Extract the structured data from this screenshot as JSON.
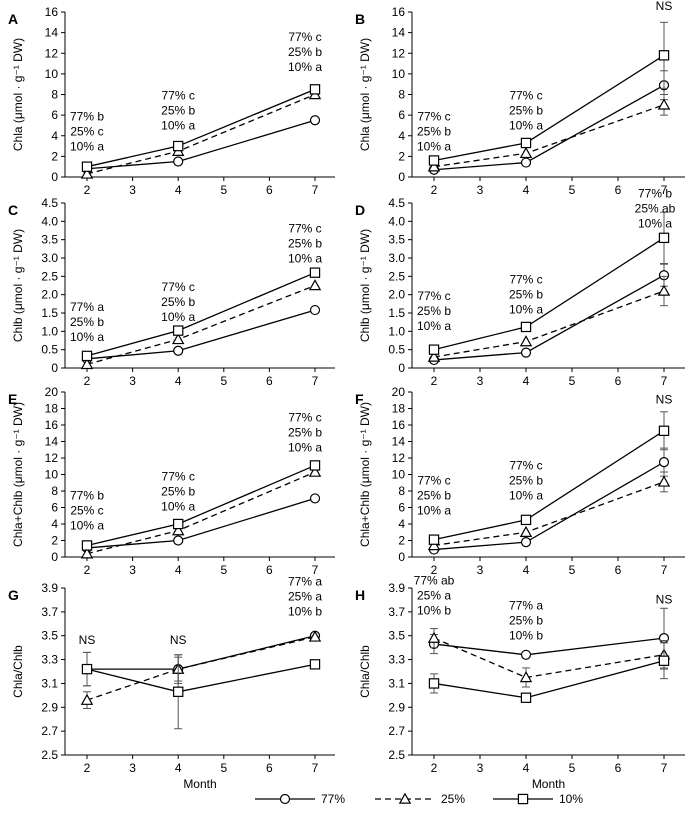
{
  "legend": [
    {
      "label": "77%",
      "marker": "circle",
      "dash": "solid"
    },
    {
      "label": "25%",
      "marker": "triangle",
      "dash": "dashed"
    },
    {
      "label": "10%",
      "marker": "square",
      "dash": "solid"
    }
  ],
  "chart_data": [
    {
      "type": "line",
      "panel": "A",
      "ylabel": "Chla (μmol · g⁻¹ DW)",
      "xlabel": "",
      "x": [
        2,
        4,
        7
      ],
      "xlim": [
        2,
        7
      ],
      "xticks": [
        2,
        3,
        4,
        5,
        6,
        7
      ],
      "ylim": [
        0,
        16
      ],
      "yticks": [
        "0",
        "2",
        "4",
        "6",
        "8",
        "10",
        "12",
        "14",
        "16"
      ],
      "series": [
        {
          "name": "77%",
          "values": [
            0.8,
            1.5,
            5.5
          ],
          "errors": [
            0,
            0,
            0
          ]
        },
        {
          "name": "25%",
          "values": [
            0.3,
            2.5,
            8.0
          ],
          "errors": [
            0,
            0,
            0
          ]
        },
        {
          "name": "10%",
          "values": [
            1.0,
            3.0,
            8.5
          ],
          "errors": [
            0,
            0,
            0
          ]
        }
      ],
      "annotations": [
        {
          "x": 2,
          "y": 5.5,
          "lines": [
            "77% b",
            "25% c",
            "10% a"
          ]
        },
        {
          "x": 4,
          "y": 7.5,
          "lines": [
            "77% c",
            "25% b",
            "10% a"
          ]
        },
        {
          "x": 7,
          "y": 13.2,
          "lines": [
            "77% c",
            "25% b",
            "10% a"
          ]
        }
      ]
    },
    {
      "type": "line",
      "panel": "B",
      "ylabel": "Chla (μmol · g⁻¹ DW)",
      "xlabel": "",
      "x": [
        2,
        4,
        7
      ],
      "xlim": [
        2,
        7
      ],
      "xticks": [
        2,
        3,
        4,
        5,
        6,
        7
      ],
      "ylim": [
        0,
        16
      ],
      "yticks": [
        "0",
        "2",
        "4",
        "6",
        "8",
        "10",
        "12",
        "14",
        "16"
      ],
      "series": [
        {
          "name": "77%",
          "values": [
            0.7,
            1.4,
            8.9
          ],
          "errors": [
            0,
            0,
            1.4
          ]
        },
        {
          "name": "25%",
          "values": [
            1.0,
            2.3,
            7.0
          ],
          "errors": [
            0,
            0,
            1.0
          ]
        },
        {
          "name": "10%",
          "values": [
            1.6,
            3.3,
            11.8
          ],
          "errors": [
            0,
            0,
            3.2
          ]
        }
      ],
      "annotations": [
        {
          "x": 2,
          "y": 5.5,
          "lines": [
            "77% c",
            "25% b",
            "10% a"
          ]
        },
        {
          "x": 4,
          "y": 7.5,
          "lines": [
            "77% c",
            "25% b",
            "10% a"
          ]
        },
        {
          "x": 7,
          "y": 16.2,
          "lines": [
            "NS"
          ]
        }
      ]
    },
    {
      "type": "line",
      "panel": "C",
      "ylabel": "Chlb (μmol · g⁻¹ DW)",
      "xlabel": "",
      "x": [
        2,
        4,
        7
      ],
      "xlim": [
        2,
        7
      ],
      "xticks": [
        2,
        3,
        4,
        5,
        6,
        7
      ],
      "ylim": [
        0,
        4.5
      ],
      "yticks": [
        "0",
        "0.5",
        "1.0",
        "1.5",
        "2.0",
        "2.5",
        "3.0",
        "3.5",
        "4.0",
        "4.5"
      ],
      "series": [
        {
          "name": "77%",
          "values": [
            0.25,
            0.47,
            1.58
          ],
          "errors": [
            0,
            0,
            0
          ]
        },
        {
          "name": "25%",
          "values": [
            0.1,
            0.78,
            2.25
          ],
          "errors": [
            0,
            0,
            0
          ]
        },
        {
          "name": "10%",
          "values": [
            0.33,
            1.02,
            2.6
          ],
          "errors": [
            0,
            0,
            0
          ]
        }
      ],
      "annotations": [
        {
          "x": 2,
          "y": 1.55,
          "lines": [
            "77% a",
            "25% b",
            "10% a"
          ]
        },
        {
          "x": 4,
          "y": 2.1,
          "lines": [
            "77% c",
            "25% b",
            "10% a"
          ]
        },
        {
          "x": 7,
          "y": 3.7,
          "lines": [
            "77% c",
            "25% b",
            "10% a"
          ]
        }
      ]
    },
    {
      "type": "line",
      "panel": "D",
      "ylabel": "Chlb (μmol · g⁻¹ DW)",
      "xlabel": "",
      "x": [
        2,
        4,
        7
      ],
      "xlim": [
        2,
        7
      ],
      "xticks": [
        2,
        3,
        4,
        5,
        6,
        7
      ],
      "ylim": [
        0,
        4.5
      ],
      "yticks": [
        "0",
        "0.5",
        "1.0",
        "1.5",
        "2.0",
        "2.5",
        "3.0",
        "3.5",
        "4.0",
        "4.5"
      ],
      "series": [
        {
          "name": "77%",
          "values": [
            0.22,
            0.42,
            2.53
          ],
          "errors": [
            0,
            0,
            0.3
          ]
        },
        {
          "name": "25%",
          "values": [
            0.3,
            0.72,
            2.1
          ],
          "errors": [
            0,
            0,
            0.4
          ]
        },
        {
          "name": "10%",
          "values": [
            0.5,
            1.12,
            3.55
          ],
          "errors": [
            0,
            0,
            0.7
          ]
        }
      ],
      "annotations": [
        {
          "x": 2,
          "y": 1.85,
          "lines": [
            "77% c",
            "25% b",
            "10% a"
          ]
        },
        {
          "x": 4,
          "y": 2.3,
          "lines": [
            "77% c",
            "25% b",
            "10% a"
          ]
        },
        {
          "x": 7,
          "y": 4.65,
          "lines": [
            "77% b",
            "25% ab",
            "10% a"
          ]
        }
      ]
    },
    {
      "type": "line",
      "panel": "E",
      "ylabel": "Chla+Chlb (μmol · g⁻¹ DW)",
      "xlabel": "",
      "x": [
        2,
        4,
        7
      ],
      "xlim": [
        2,
        7
      ],
      "xticks": [
        2,
        3,
        4,
        5,
        6,
        7
      ],
      "ylim": [
        0,
        20
      ],
      "yticks": [
        "0",
        "2",
        "4",
        "6",
        "8",
        "10",
        "12",
        "14",
        "16",
        "18",
        "20"
      ],
      "series": [
        {
          "name": "77%",
          "values": [
            1.1,
            2.0,
            7.1
          ],
          "errors": [
            0,
            0,
            0
          ]
        },
        {
          "name": "25%",
          "values": [
            0.4,
            3.2,
            10.3
          ],
          "errors": [
            0,
            0,
            0
          ]
        },
        {
          "name": "10%",
          "values": [
            1.4,
            4.0,
            11.1
          ],
          "errors": [
            0,
            0,
            0
          ]
        }
      ],
      "annotations": [
        {
          "x": 2,
          "y": 7.0,
          "lines": [
            "77% b",
            "25% c",
            "10% a"
          ]
        },
        {
          "x": 4,
          "y": 9.3,
          "lines": [
            "77% c",
            "25% b",
            "10% a"
          ]
        },
        {
          "x": 7,
          "y": 16.4,
          "lines": [
            "77% c",
            "25% b",
            "10% a"
          ]
        }
      ]
    },
    {
      "type": "line",
      "panel": "F",
      "ylabel": "Chla+Chlb (μmol · g⁻¹ DW)",
      "xlabel": "",
      "x": [
        2,
        4,
        7
      ],
      "xlim": [
        2,
        7
      ],
      "xticks": [
        2,
        3,
        4,
        5,
        6,
        7
      ],
      "ylim": [
        0,
        20
      ],
      "yticks": [
        "0",
        "2",
        "4",
        "6",
        "8",
        "10",
        "12",
        "14",
        "16",
        "18",
        "20"
      ],
      "series": [
        {
          "name": "77%",
          "values": [
            0.9,
            1.8,
            11.5
          ],
          "errors": [
            0,
            0,
            1.7
          ]
        },
        {
          "name": "25%",
          "values": [
            1.4,
            3.0,
            9.1
          ],
          "errors": [
            0,
            0,
            1.2
          ]
        },
        {
          "name": "10%",
          "values": [
            2.1,
            4.5,
            15.3
          ],
          "errors": [
            0,
            0,
            2.3
          ]
        }
      ],
      "annotations": [
        {
          "x": 2,
          "y": 8.8,
          "lines": [
            "77% c",
            "25% b",
            "10% a"
          ]
        },
        {
          "x": 4,
          "y": 10.6,
          "lines": [
            "77% c",
            "25% b",
            "10% a"
          ]
        },
        {
          "x": 7,
          "y": 18.6,
          "lines": [
            "NS"
          ]
        }
      ]
    },
    {
      "type": "line",
      "panel": "G",
      "ylabel": "Chla/Chlb",
      "xlabel": "Month",
      "x": [
        2,
        4,
        7
      ],
      "xlim": [
        2,
        7
      ],
      "xticks": [
        2,
        3,
        4,
        5,
        6,
        7
      ],
      "ylim": [
        2.5,
        3.9
      ],
      "yticks": [
        "2.5",
        "2.7",
        "2.9",
        "3.1",
        "3.3",
        "3.5",
        "3.7",
        "3.9"
      ],
      "series": [
        {
          "name": "77%",
          "values": [
            3.22,
            3.22,
            3.5
          ],
          "errors": [
            0.14,
            0.12,
            0
          ]
        },
        {
          "name": "25%",
          "values": [
            2.96,
            3.22,
            3.49
          ],
          "errors": [
            0.07,
            0.1,
            0
          ]
        },
        {
          "name": "10%",
          "values": [
            3.22,
            3.03,
            3.26
          ],
          "errors": [
            0.14,
            0.31,
            0
          ]
        }
      ],
      "annotations": [
        {
          "x": 2,
          "y": 3.43,
          "lines": [
            "NS"
          ]
        },
        {
          "x": 4,
          "y": 3.43,
          "lines": [
            "NS"
          ]
        },
        {
          "x": 7,
          "y": 3.92,
          "lines": [
            "77% a",
            "25% a",
            "10% b"
          ]
        }
      ]
    },
    {
      "type": "line",
      "panel": "H",
      "ylabel": "Chla/Chlb",
      "xlabel": "Month",
      "x": [
        2,
        4,
        7
      ],
      "xlim": [
        2,
        7
      ],
      "xticks": [
        2,
        3,
        4,
        5,
        6,
        7
      ],
      "ylim": [
        2.5,
        3.9
      ],
      "yticks": [
        "2.5",
        "2.7",
        "2.9",
        "3.1",
        "3.3",
        "3.5",
        "3.7",
        "3.9"
      ],
      "series": [
        {
          "name": "77%",
          "values": [
            3.43,
            3.34,
            3.48
          ],
          "errors": [
            0.08,
            0,
            0.25
          ]
        },
        {
          "name": "25%",
          "values": [
            3.48,
            3.15,
            3.34
          ],
          "errors": [
            0.08,
            0.08,
            0.12
          ]
        },
        {
          "name": "10%",
          "values": [
            3.1,
            2.98,
            3.29
          ],
          "errors": [
            0.08,
            0,
            0.15
          ]
        }
      ],
      "annotations": [
        {
          "x": 2,
          "y": 3.93,
          "lines": [
            "77% ab",
            "25% a",
            "10% b"
          ]
        },
        {
          "x": 4,
          "y": 3.72,
          "lines": [
            "77% a",
            "25% b",
            "10% b"
          ]
        },
        {
          "x": 7,
          "y": 3.77,
          "lines": [
            "NS"
          ]
        }
      ]
    }
  ]
}
